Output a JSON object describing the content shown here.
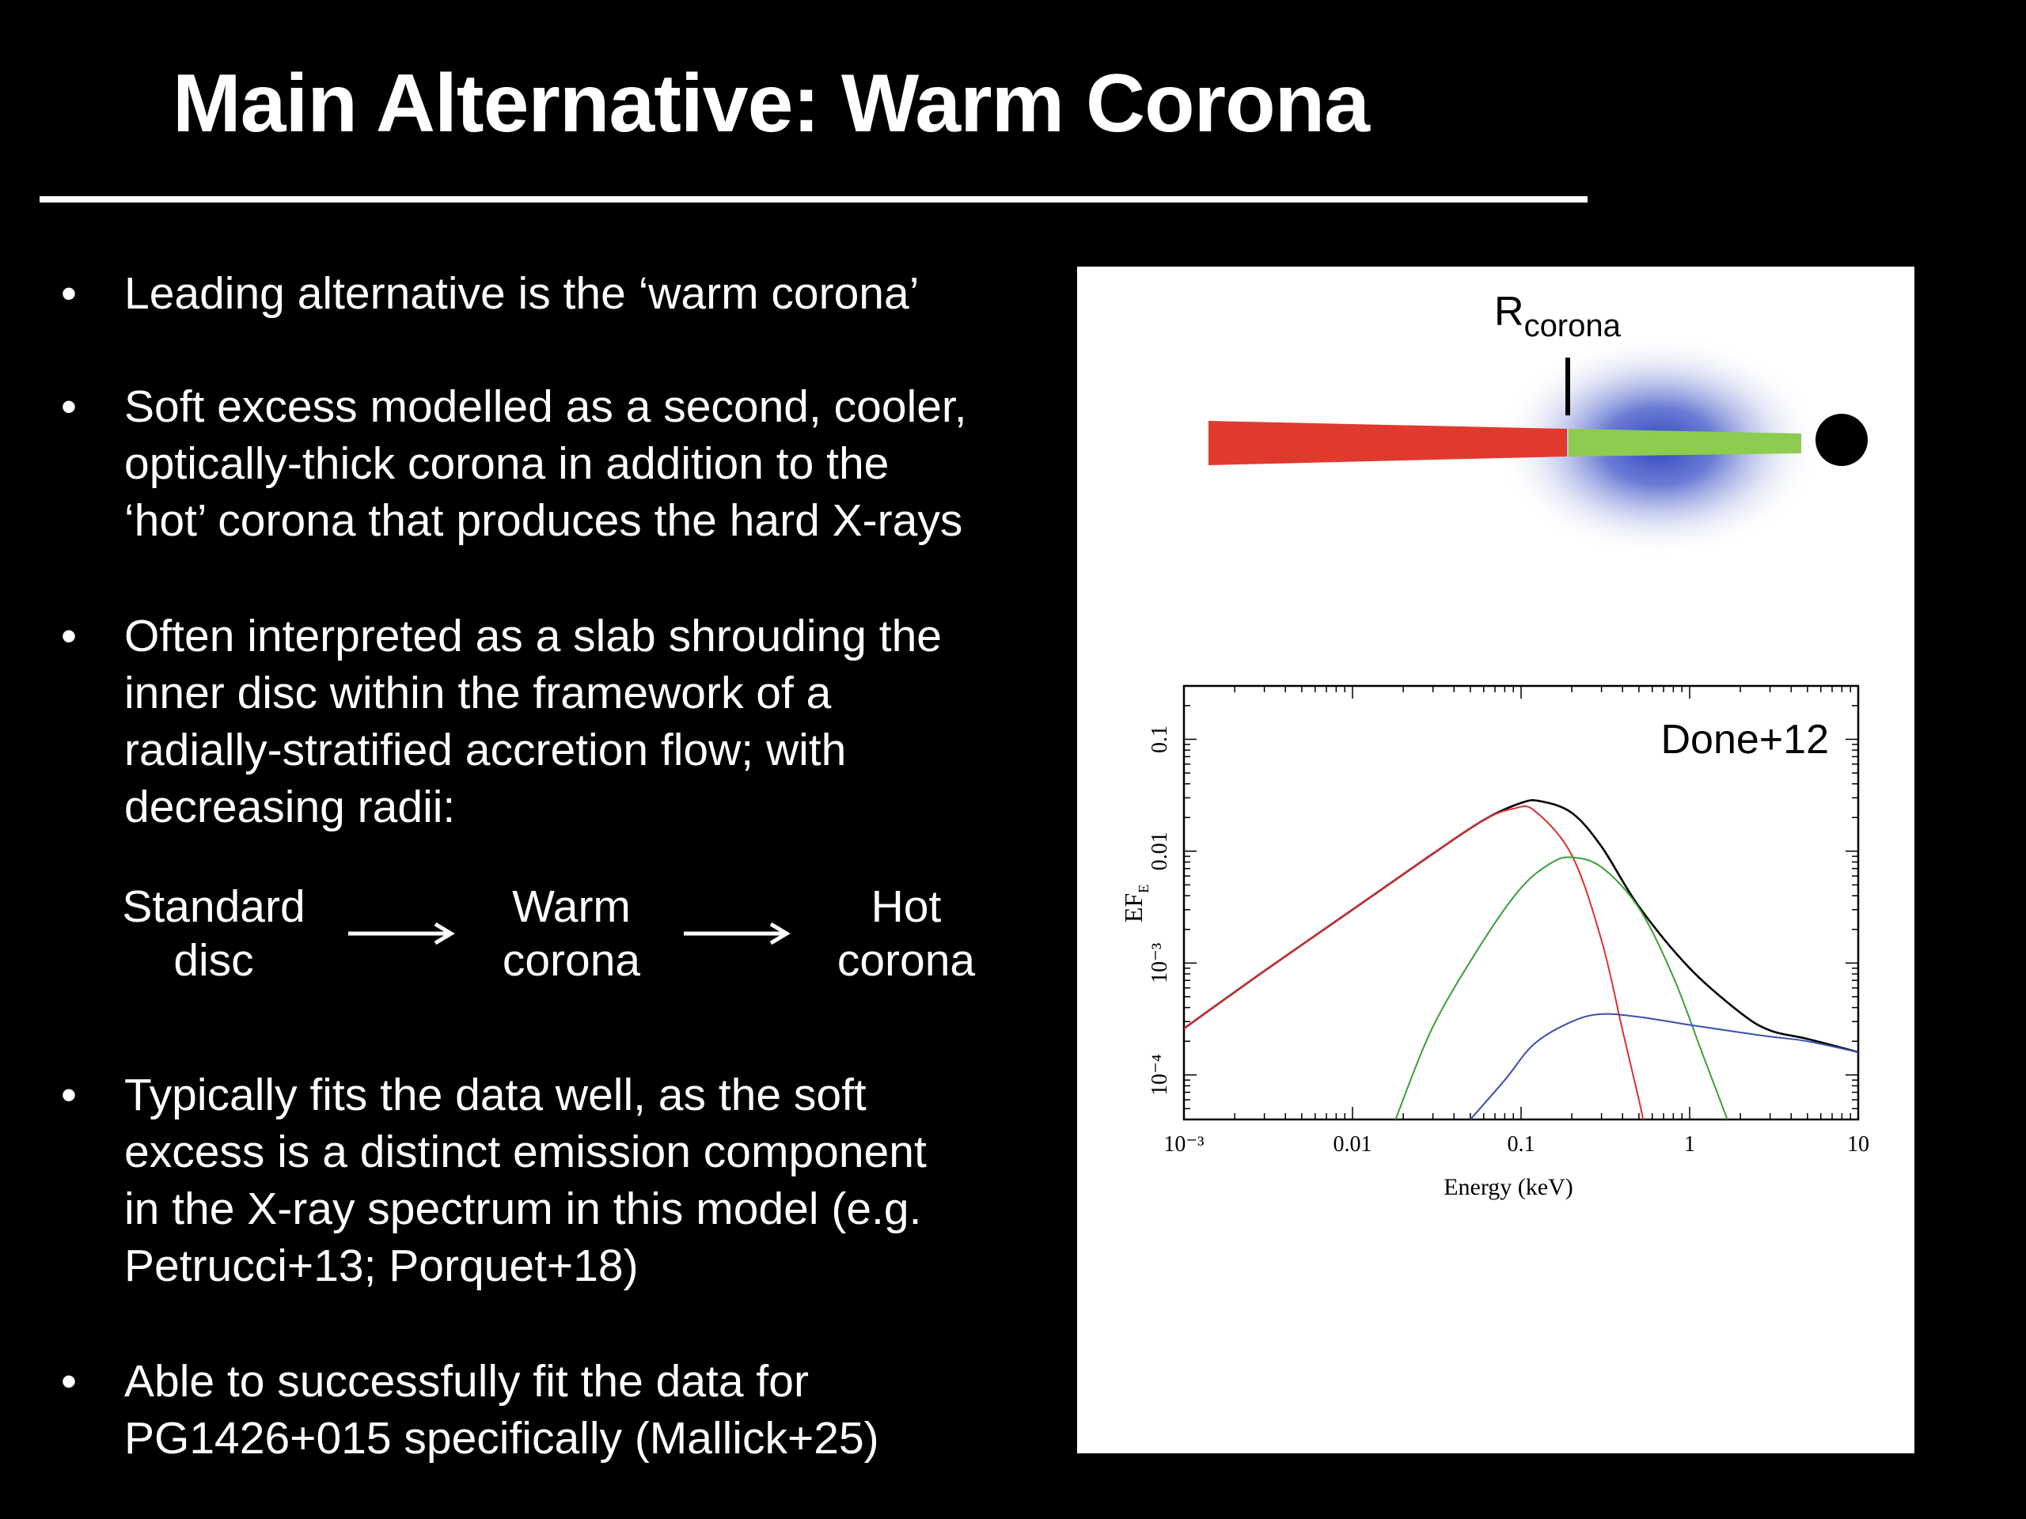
{
  "slide": {
    "title": "Main Alternative: Warm Corona"
  },
  "bullets": [
    {
      "lines": [
        "Leading alternative is the ‘warm corona’"
      ]
    },
    {
      "lines": [
        "Soft excess modelled as a second, cooler,",
        "optically-thick corona in addition to the",
        "‘hot’ corona that produces the hard X-rays"
      ]
    },
    {
      "lines": [
        "Often interpreted as a slab shrouding the",
        "inner disc within the framework of a",
        "radially-stratified accretion flow; with",
        "decreasing radii:"
      ]
    },
    {
      "lines": [
        "Typically fits the data well, as the soft",
        "excess is a distinct emission component",
        "in the X-ray spectrum in this model (e.g.",
        "Petrucci+13; Porquet+18)"
      ]
    },
    {
      "lines": [
        "Able to successfully fit the data for",
        "PG1426+015 specifically (Mallick+25)"
      ]
    }
  ],
  "bullet_symbol": "•",
  "flow": {
    "stage1": [
      "Standard",
      "disc"
    ],
    "stage2": [
      "Warm",
      "corona"
    ],
    "stage3": [
      "Hot",
      "corona"
    ]
  },
  "geometry_diagram": {
    "label_main": "R",
    "label_sub": "corona",
    "colors": {
      "disc": "#e03a2f",
      "warm_corona_slab": "#8ccc4e",
      "halo": "#3a4fbf",
      "black_hole": "#000000"
    }
  },
  "spectrum_plot": {
    "annotation": "Done+12",
    "xlabel": "Energy (keV)",
    "ylabel_main": "EF",
    "ylabel_sub": "E",
    "xticks": [
      "10⁻³",
      "0.01",
      "0.1",
      "1",
      "10"
    ],
    "yticks": [
      "10⁻⁴",
      "10⁻³",
      "0.01",
      "0.1"
    ]
  },
  "chart_data": {
    "type": "line",
    "xscale": "log",
    "yscale": "log",
    "xlim": [
      0.001,
      10
    ],
    "ylim": [
      4e-05,
      0.3
    ],
    "grid": false,
    "series": [
      {
        "color": "#000000",
        "x": [
          0.001,
          0.003,
          0.01,
          0.03,
          0.06,
          0.1,
          0.13,
          0.2,
          0.3,
          0.5,
          1,
          2,
          3,
          5,
          10
        ],
        "y": [
          0.00026,
          0.00085,
          0.003,
          0.0095,
          0.019,
          0.027,
          0.028,
          0.022,
          0.011,
          0.0032,
          0.0009,
          0.00036,
          0.00025,
          0.00021,
          0.00016
        ]
      },
      {
        "color": "#e03030",
        "x": [
          0.001,
          0.003,
          0.01,
          0.03,
          0.06,
          0.09,
          0.12,
          0.2,
          0.3,
          0.4,
          0.5,
          0.55
        ],
        "y": [
          0.00026,
          0.00085,
          0.003,
          0.0095,
          0.019,
          0.024,
          0.023,
          0.0092,
          0.0016,
          0.00025,
          6e-05,
          3e-05
        ]
      },
      {
        "color": "#3aa03a",
        "x": [
          0.018,
          0.03,
          0.06,
          0.1,
          0.15,
          0.2,
          0.3,
          0.5,
          0.8,
          1.2,
          1.8
        ],
        "y": [
          4e-05,
          0.00027,
          0.0016,
          0.0047,
          0.0078,
          0.0088,
          0.0072,
          0.0031,
          0.00075,
          0.00015,
          3e-05
        ]
      },
      {
        "color": "#3a4fb0",
        "x": [
          0.05,
          0.08,
          0.12,
          0.2,
          0.3,
          0.5,
          1,
          2,
          3,
          5,
          10
        ],
        "y": [
          4e-05,
          9e-05,
          0.00019,
          0.0003,
          0.00035,
          0.00033,
          0.00028,
          0.00024,
          0.00022,
          0.0002,
          0.00016
        ]
      }
    ]
  }
}
